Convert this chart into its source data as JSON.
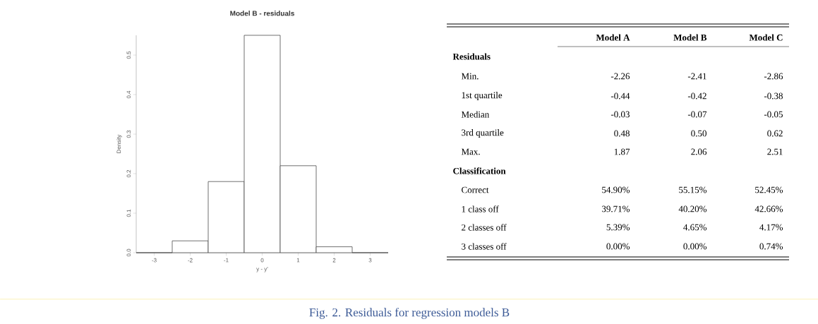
{
  "chart_data": [
    {
      "type": "histogram",
      "title": "Model B - residuals",
      "xlabel": "y - y'",
      "ylabel": "Density",
      "bins": [
        -3.5,
        -2.5,
        -1.5,
        -0.5,
        0.5,
        1.5,
        2.5,
        3.5
      ],
      "values": [
        0,
        0.03,
        0.18,
        0.55,
        0.22,
        0.015,
        0
      ],
      "xlim": [
        -3.5,
        3.5
      ],
      "ylim": [
        0,
        0.55
      ],
      "xticks": [
        -3,
        -2,
        -1,
        0,
        1,
        2,
        3
      ],
      "yticks": [
        {
          "value": 0,
          "label": "0.0"
        },
        0.1,
        0.2,
        0.3,
        0.4,
        0.5
      ],
      "annotations": [
        "Fig. 2. Residuals for regression models B"
      ]
    },
    {
      "type": "other",
      "categories": [
        "Model A",
        "Model B",
        "Model C"
      ],
      "y_categories": [
        "Residuals",
        "Min.",
        "1st quartile",
        "Median",
        "3rd quartile",
        "Max.",
        "Classification",
        "Correct",
        "1 class off",
        "2 classes off",
        "3 classes off"
      ],
      "cell_labels": [
        [
          null,
          null,
          null
        ],
        [
          "-2.26",
          "-2.41",
          "-2.86"
        ],
        [
          "-0.44",
          "-0.42",
          "-0.38"
        ],
        [
          "-0.03",
          "-0.07",
          "-0.05"
        ],
        [
          "0.48",
          "0.50",
          "0.62"
        ],
        [
          "1.87",
          "2.06",
          "2.51"
        ],
        [
          null,
          null,
          null
        ],
        [
          "54.90%",
          "55.15%",
          "52.45%"
        ],
        [
          "39.71%",
          "40.20%",
          "42.66%"
        ],
        [
          "5.39%",
          "4.65%",
          "4.17%"
        ],
        [
          "0.00%",
          "0.00%",
          "0.74%"
        ]
      ]
    }
  ]
}
